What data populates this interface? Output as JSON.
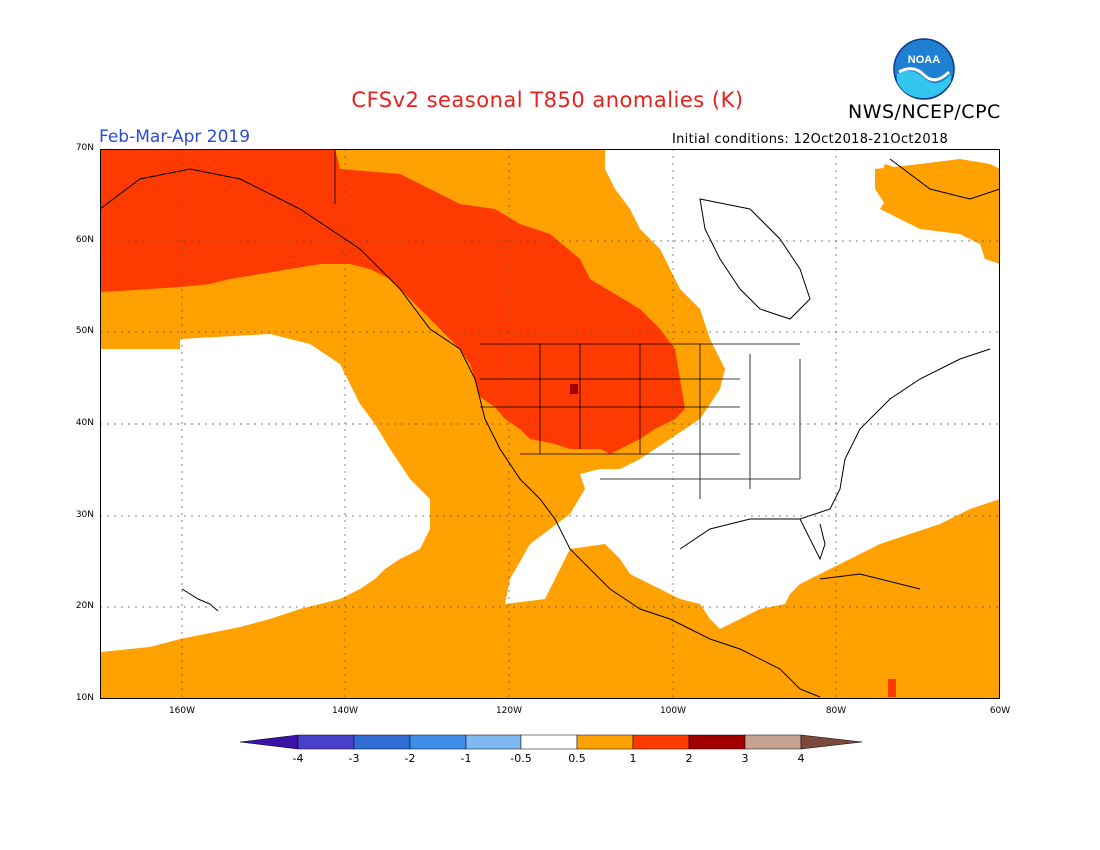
{
  "header": {
    "title": "CFSv2 seasonal T850 anomalies (K)",
    "org": "NWS/NCEP/CPC",
    "period": "Feb-Mar-Apr 2019",
    "initial_conditions": "Initial conditions: 12Oct2018-21Oct2018",
    "logo_text": "NOAA"
  },
  "map": {
    "y_labels": [
      "70N",
      "60N",
      "50N",
      "40N",
      "30N",
      "20N",
      "10N"
    ],
    "x_labels": [
      "160W",
      "140W",
      "120W",
      "100W",
      "80W",
      "60W"
    ],
    "lat_range": [
      10,
      70
    ],
    "lon_range": [
      -170,
      -60
    ],
    "grid": true
  },
  "colorbar": {
    "labels": [
      "-4",
      "-3",
      "-2",
      "-1",
      "-0.5",
      "0.5",
      "1",
      "2",
      "3",
      "4"
    ],
    "colors": [
      "#3b13a6",
      "#4840c8",
      "#2f6dd4",
      "#3f8fe9",
      "#7fb9f3",
      "#ffffff",
      "#ffa100",
      "#ff3a00",
      "#a20000",
      "#c8a291",
      "#7b4a3a"
    ]
  },
  "colors": {
    "anom_0_5_1": "#ffa100",
    "anom_1_2": "#ff3a00",
    "anom_2_3": "#a20000",
    "title": "#e8201c",
    "period": "#2a4bd7"
  }
}
